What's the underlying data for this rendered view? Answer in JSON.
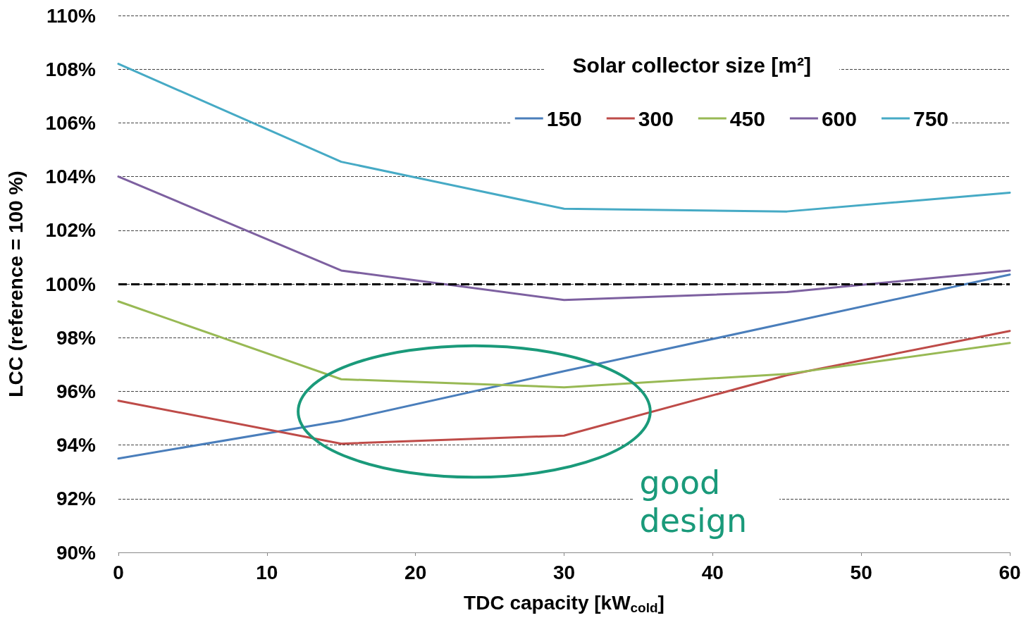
{
  "chart_data": {
    "type": "line",
    "xlabel": "TDC capacity [kW$_{cold}$]",
    "ylabel": "LCC (reference = 100 %)",
    "legend_title": "Solar collector size [m²]",
    "x": [
      0,
      15,
      30,
      45,
      60
    ],
    "series": [
      {
        "name": "150",
        "color": "#4a7ebb",
        "values": [
          93.5,
          94.9,
          96.75,
          98.55,
          100.35
        ]
      },
      {
        "name": "300",
        "color": "#be4b48",
        "values": [
          95.65,
          94.05,
          94.35,
          96.6,
          98.25
        ]
      },
      {
        "name": "450",
        "color": "#98b954",
        "values": [
          99.35,
          96.45,
          96.15,
          96.65,
          97.8
        ]
      },
      {
        "name": "600",
        "color": "#7d60a0",
        "values": [
          104.0,
          100.5,
          99.4,
          99.7,
          100.5
        ]
      },
      {
        "name": "750",
        "color": "#46aac5",
        "values": [
          108.2,
          104.55,
          102.8,
          102.7,
          103.4
        ]
      }
    ],
    "xlim": [
      0,
      60
    ],
    "xticks": [
      0,
      10,
      20,
      30,
      40,
      50,
      60
    ],
    "ylim": [
      90,
      110
    ],
    "yticks": [
      {
        "value": 90,
        "label": "90%"
      },
      {
        "value": 92,
        "label": "92%"
      },
      {
        "value": 94,
        "label": "94%"
      },
      {
        "value": 96,
        "label": "96%"
      },
      {
        "value": 98,
        "label": "98%"
      },
      {
        "value": 100,
        "label": "100%"
      },
      {
        "value": 102,
        "label": "102%"
      },
      {
        "value": 104,
        "label": "104%"
      },
      {
        "value": 106,
        "label": "106%"
      },
      {
        "value": 108,
        "label": "108%"
      },
      {
        "value": 110,
        "label": "110%"
      }
    ],
    "ref_lines": [
      {
        "axis": "y",
        "value": 100,
        "label": null,
        "color": "#000000",
        "line_style": "dashed"
      }
    ],
    "annotations": [
      "good design"
    ],
    "grid": "y",
    "legend": "top right",
    "marker": "none",
    "line_style": "solid"
  }
}
